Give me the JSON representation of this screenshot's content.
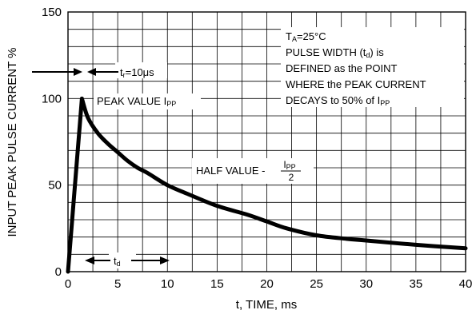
{
  "chart_data": {
    "type": "line",
    "xlabel": "t, TIME, ms",
    "ylabel": "INPUT PEAK PULSE CURRENT %",
    "xlim": [
      0,
      40
    ],
    "ylim": [
      0,
      150
    ],
    "x_ticks": [
      "0",
      "5",
      "10",
      "15",
      "20",
      "25",
      "30",
      "35",
      "40"
    ],
    "y_ticks": [
      "0",
      "50",
      "100",
      "150"
    ],
    "grid": true,
    "series": [
      {
        "x": [
          0,
          1.4,
          2,
          3,
          4,
          5,
          6,
          7,
          8,
          10,
          12,
          15,
          18,
          20,
          22,
          25,
          28,
          30,
          35,
          40
        ],
        "y": [
          0,
          100,
          89,
          80,
          74,
          69,
          64,
          60,
          57,
          50,
          45,
          38,
          33,
          29,
          25,
          21,
          19,
          18,
          15.5,
          13.5
        ]
      }
    ],
    "annotations": {
      "rise_time": {
        "label_pre": "t",
        "label_sub": "r",
        "label_post": "=10μs"
      },
      "peak_value": {
        "label": "PEAK VALUE I",
        "sub": "PP"
      },
      "half_value": {
        "label": "HALF VALUE - ",
        "num": "I",
        "num_sub": "PP",
        "den": "2"
      },
      "td": {
        "label": "t",
        "sub": "d"
      },
      "conditions": {
        "line1_pre": "T",
        "line1_sub": "A",
        "line1_post": "=25°C",
        "line2_pre": "PULSE WIDTH (t",
        "line2_sub": "d",
        "line2_post": ") is",
        "line3": "DEFINED as the POINT",
        "line4": "WHERE the PEAK CURRENT",
        "line5_pre": "DECAYS to 50% of I",
        "line5_sub": "PP"
      }
    }
  }
}
